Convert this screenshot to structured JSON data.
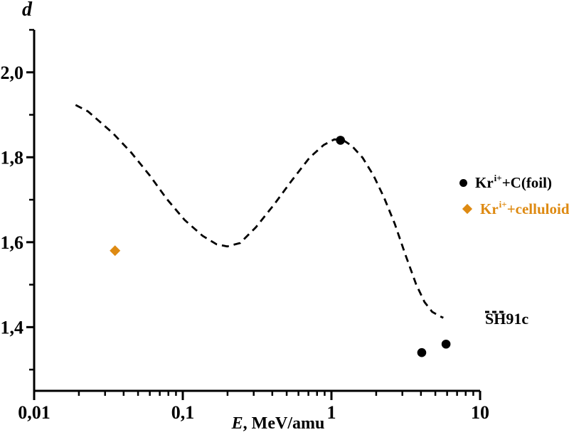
{
  "figure": {
    "y_axis_title": "d",
    "x_title_symbol": "E",
    "x_title_units": ", MeV/amu"
  },
  "legend": {
    "kr_c_foil": {
      "base": "Kr",
      "sup": "i+",
      "rest": "+C(foil)"
    },
    "kr_celluloid": {
      "base": "Kr",
      "sup": "i+",
      "rest": "+celluloid"
    },
    "sh91c": {
      "label": "SH91c"
    }
  },
  "colors": {
    "foreground": "#000000",
    "celluloid_orange": "#DE8A12",
    "background": "#FFFFFF"
  },
  "chart_data": {
    "type": "scatter",
    "x_scale": "log",
    "xlabel": "E, MeV/amu",
    "ylabel": "d",
    "x_range": [
      0.01,
      10
    ],
    "y_range": [
      1.25,
      2.1
    ],
    "grid": false,
    "legend_position": "right",
    "x_ticks": {
      "major": [
        0.01,
        0.1,
        1,
        10
      ],
      "labels": [
        "0,01",
        "0,1",
        "1",
        "10"
      ]
    },
    "y_ticks": {
      "major": [
        1.4,
        1.6,
        1.8,
        2.0
      ],
      "labels": [
        "1,4",
        "1,6",
        "1,8",
        "2,0"
      ],
      "minor": [
        1.3,
        1.5,
        1.7,
        1.9,
        2.1
      ]
    },
    "series": [
      {
        "name": "Kr i+ + C(foil)",
        "kind": "scatter",
        "marker": "circle",
        "color": "#000000",
        "points": [
          [
            1.15,
            1.84
          ],
          [
            4.05,
            1.34
          ],
          [
            5.9,
            1.36
          ]
        ]
      },
      {
        "name": "Kr i+ + celluloid",
        "kind": "scatter",
        "marker": "diamond",
        "color": "#DE8A12",
        "points": [
          [
            0.035,
            1.58
          ]
        ]
      },
      {
        "name": "SH91c",
        "kind": "dashed-line",
        "color": "#000000",
        "points": [
          [
            0.019,
            1.923
          ],
          [
            0.023,
            1.908
          ],
          [
            0.028,
            1.882
          ],
          [
            0.034,
            1.856
          ],
          [
            0.045,
            1.811
          ],
          [
            0.06,
            1.757
          ],
          [
            0.078,
            1.702
          ],
          [
            0.103,
            1.652
          ],
          [
            0.136,
            1.615
          ],
          [
            0.169,
            1.595
          ],
          [
            0.199,
            1.59
          ],
          [
            0.243,
            1.598
          ],
          [
            0.31,
            1.635
          ],
          [
            0.41,
            1.688
          ],
          [
            0.54,
            1.745
          ],
          [
            0.712,
            1.799
          ],
          [
            0.887,
            1.829
          ],
          [
            1.045,
            1.842
          ],
          [
            1.19,
            1.841
          ],
          [
            1.37,
            1.827
          ],
          [
            1.62,
            1.799
          ],
          [
            1.92,
            1.757
          ],
          [
            2.26,
            1.705
          ],
          [
            2.67,
            1.643
          ],
          [
            3.14,
            1.571
          ],
          [
            3.71,
            1.501
          ],
          [
            4.23,
            1.459
          ],
          [
            4.76,
            1.436
          ],
          [
            5.33,
            1.426
          ],
          [
            5.66,
            1.422
          ]
        ]
      }
    ]
  }
}
